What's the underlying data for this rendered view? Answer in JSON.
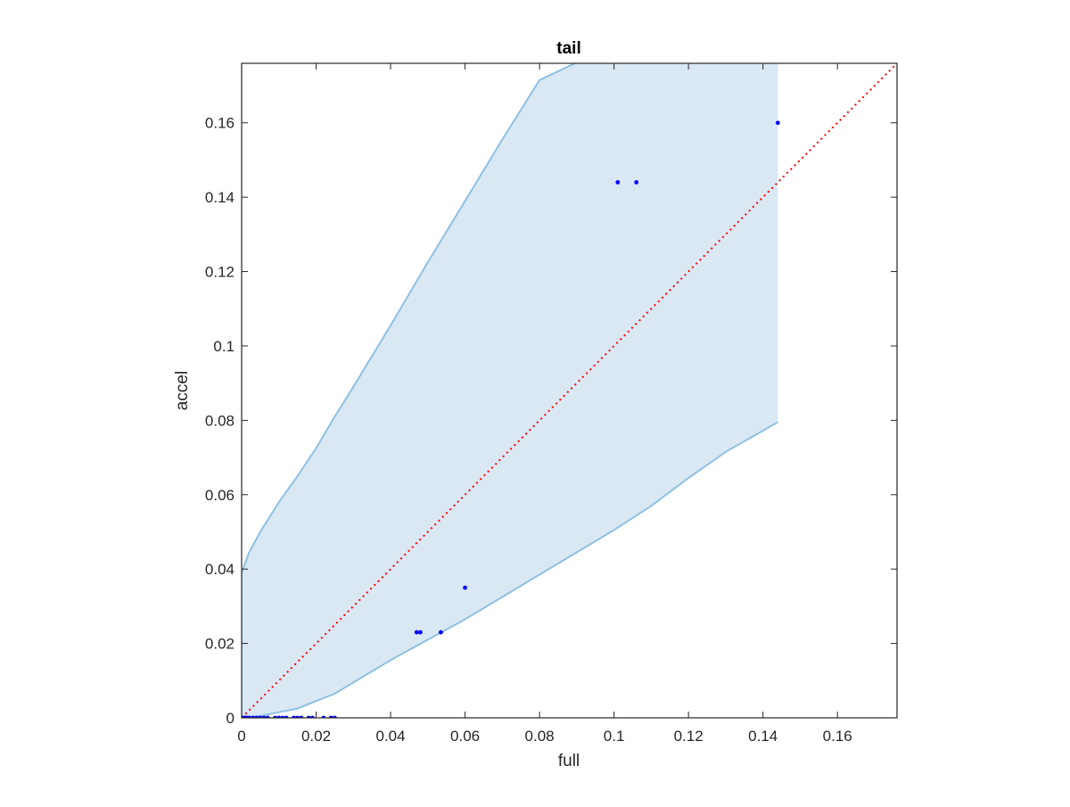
{
  "chart_data": {
    "type": "scatter",
    "title": "tail",
    "xlabel": "full",
    "ylabel": "accel",
    "xlim": [
      0,
      0.176
    ],
    "ylim": [
      0,
      0.176
    ],
    "xticks": [
      0,
      0.02,
      0.04,
      0.06,
      0.08,
      0.1,
      0.12,
      0.14,
      0.16
    ],
    "yticks": [
      0,
      0.02,
      0.04,
      0.06,
      0.08,
      0.1,
      0.12,
      0.14,
      0.16
    ],
    "xtick_labels": [
      "0",
      "0.02",
      "0.04",
      "0.06",
      "0.08",
      "0.1",
      "0.12",
      "0.14",
      "0.16"
    ],
    "ytick_labels": [
      "0",
      "0.02",
      "0.04",
      "0.06",
      "0.08",
      "0.1",
      "0.12",
      "0.14",
      "0.16"
    ],
    "grid": false,
    "colors": {
      "points": "#0000ff",
      "reference_line": "#ff0000",
      "band_fill": "#dae8f4",
      "band_edge": "#8ec1e2",
      "axes": "#262626"
    },
    "series": [
      {
        "kind": "points",
        "x": [
          0,
          0.0005,
          0.001,
          0.0015,
          0.002,
          0.003,
          0.004,
          0.005,
          0.006,
          0.007,
          0.009,
          0.01,
          0.011,
          0.012,
          0.014,
          0.015,
          0.016,
          0.018,
          0.019,
          0.022,
          0.024,
          0.025,
          0.047,
          0.048,
          0.0535,
          0.06,
          0.101,
          0.106,
          0.144
        ],
        "y": [
          0,
          0,
          0,
          0,
          0,
          0,
          0,
          0,
          0,
          0,
          0,
          0,
          0,
          0,
          0,
          0,
          0,
          0,
          0,
          0,
          0,
          0,
          0.023,
          0.023,
          0.023,
          0.035,
          0.144,
          0.144,
          0.16
        ]
      },
      {
        "kind": "reference_line",
        "x": [
          0,
          0.176
        ],
        "y": [
          0,
          0.176
        ]
      },
      {
        "kind": "band_upper",
        "x": [
          0,
          0.002,
          0.005,
          0.01,
          0.015,
          0.02,
          0.025,
          0.03,
          0.04,
          0.05,
          0.06,
          0.07,
          0.08,
          0.0895
        ],
        "y": [
          0.039,
          0.0445,
          0.05,
          0.058,
          0.065,
          0.0725,
          0.081,
          0.089,
          0.1055,
          0.1225,
          0.139,
          0.1555,
          0.1715,
          0.176
        ]
      },
      {
        "kind": "band_lower",
        "x": [
          0,
          0.005,
          0.01,
          0.015,
          0.02,
          0.025,
          0.03,
          0.04,
          0.05,
          0.06,
          0.07,
          0.08,
          0.09,
          0.1,
          0.11,
          0.12,
          0.13,
          0.144
        ],
        "y": [
          0,
          0.0005,
          0.0015,
          0.0025,
          0.0045,
          0.0065,
          0.0095,
          0.0155,
          0.021,
          0.0265,
          0.0325,
          0.0385,
          0.0445,
          0.0505,
          0.057,
          0.0645,
          0.0715,
          0.0795
        ]
      }
    ]
  }
}
